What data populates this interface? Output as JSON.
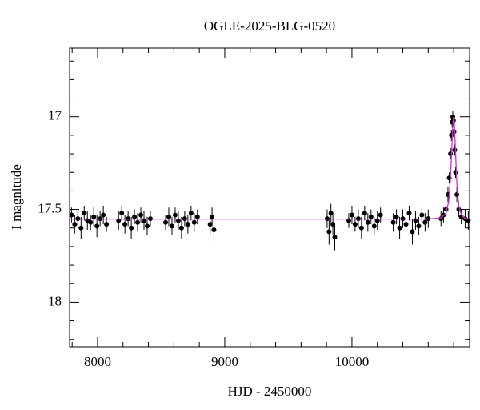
{
  "chart_data": {
    "type": "scatter",
    "title": "OGLE-2025-BLG-0520",
    "x_label": "HJD - 2450000",
    "y_label": "I magnitude",
    "xlim": [
      7780,
      10925
    ],
    "ylim": [
      18.24,
      16.63
    ],
    "y_inverted": true,
    "xticks": [
      8000,
      9000,
      10000
    ],
    "yticks": [
      17,
      17.5,
      18
    ],
    "xminor_ticks": [
      7800,
      8200,
      8400,
      8600,
      8800,
      9200,
      9400,
      9600,
      9800,
      10200,
      10400,
      10600,
      10800
    ],
    "yminor_ticks": [
      16.7,
      16.8,
      16.9,
      17.1,
      17.2,
      17.3,
      17.4,
      17.6,
      17.7,
      17.8,
      17.9,
      18.1,
      18.2
    ],
    "series": [
      {
        "color": "#000000",
        "x": [
          7795,
          7820,
          7845,
          7870,
          7895,
          7920,
          7945,
          7970,
          7995,
          8020,
          8045,
          8070,
          8165,
          8190,
          8215,
          8240,
          8265,
          8290,
          8315,
          8340,
          8365,
          8390,
          8415,
          8535,
          8560,
          8585,
          8610,
          8635,
          8660,
          8685,
          8710,
          8735,
          8760,
          8785,
          8885,
          8900,
          8915,
          9805,
          9820,
          9835,
          9850,
          9865,
          9975,
          10000,
          10025,
          10050,
          10075,
          10100,
          10125,
          10150,
          10175,
          10200,
          10225,
          10325,
          10350,
          10375,
          10400,
          10425,
          10450,
          10475,
          10500,
          10525,
          10550,
          10575,
          10600,
          10700,
          10720,
          10740,
          10755,
          10765,
          10775,
          10782,
          10788,
          10793,
          10798,
          10803,
          10808,
          10815,
          10825,
          10840,
          10860,
          10890,
          10915
        ],
        "values": [
          17.53,
          17.58,
          17.55,
          17.6,
          17.52,
          17.56,
          17.57,
          17.54,
          17.59,
          17.55,
          17.53,
          17.58,
          17.56,
          17.52,
          17.58,
          17.55,
          17.6,
          17.54,
          17.57,
          17.53,
          17.56,
          17.59,
          17.55,
          17.57,
          17.54,
          17.59,
          17.53,
          17.56,
          17.6,
          17.55,
          17.58,
          17.52,
          17.57,
          17.54,
          17.58,
          17.54,
          17.61,
          17.55,
          17.62,
          17.52,
          17.58,
          17.65,
          17.56,
          17.53,
          17.58,
          17.55,
          17.6,
          17.52,
          17.57,
          17.54,
          17.59,
          17.56,
          17.53,
          17.57,
          17.54,
          17.6,
          17.55,
          17.58,
          17.52,
          17.62,
          17.56,
          17.59,
          17.53,
          17.57,
          17.55,
          17.55,
          17.53,
          17.5,
          17.42,
          17.33,
          17.2,
          17.1,
          17.03,
          17.0,
          17.02,
          17.08,
          17.18,
          17.3,
          17.42,
          17.5,
          17.54,
          17.55,
          17.56
        ],
        "errors": [
          0.04,
          0.05,
          0.04,
          0.06,
          0.04,
          0.05,
          0.04,
          0.05,
          0.06,
          0.04,
          0.05,
          0.04,
          0.05,
          0.04,
          0.05,
          0.04,
          0.06,
          0.04,
          0.05,
          0.04,
          0.05,
          0.05,
          0.04,
          0.04,
          0.05,
          0.05,
          0.04,
          0.05,
          0.06,
          0.04,
          0.05,
          0.04,
          0.05,
          0.04,
          0.05,
          0.05,
          0.06,
          0.05,
          0.07,
          0.05,
          0.06,
          0.07,
          0.04,
          0.05,
          0.04,
          0.05,
          0.06,
          0.04,
          0.05,
          0.04,
          0.05,
          0.05,
          0.04,
          0.05,
          0.04,
          0.06,
          0.05,
          0.05,
          0.04,
          0.07,
          0.05,
          0.05,
          0.04,
          0.05,
          0.05,
          0.04,
          0.04,
          0.04,
          0.04,
          0.03,
          0.03,
          0.03,
          0.03,
          0.03,
          0.03,
          0.03,
          0.03,
          0.03,
          0.04,
          0.04,
          0.04,
          0.05,
          0.05
        ]
      },
      {
        "type": "line",
        "color": "#cc33cc",
        "x": [
          7780,
          10600,
          10700,
          10740,
          10760,
          10775,
          10785,
          10795,
          10800,
          10805,
          10815,
          10825,
          10840,
          10860,
          10890,
          10925
        ],
        "values": [
          17.552,
          17.552,
          17.545,
          17.52,
          17.46,
          17.33,
          17.17,
          17.03,
          17.0,
          17.03,
          17.2,
          17.36,
          17.48,
          17.53,
          17.548,
          17.551
        ]
      }
    ]
  }
}
